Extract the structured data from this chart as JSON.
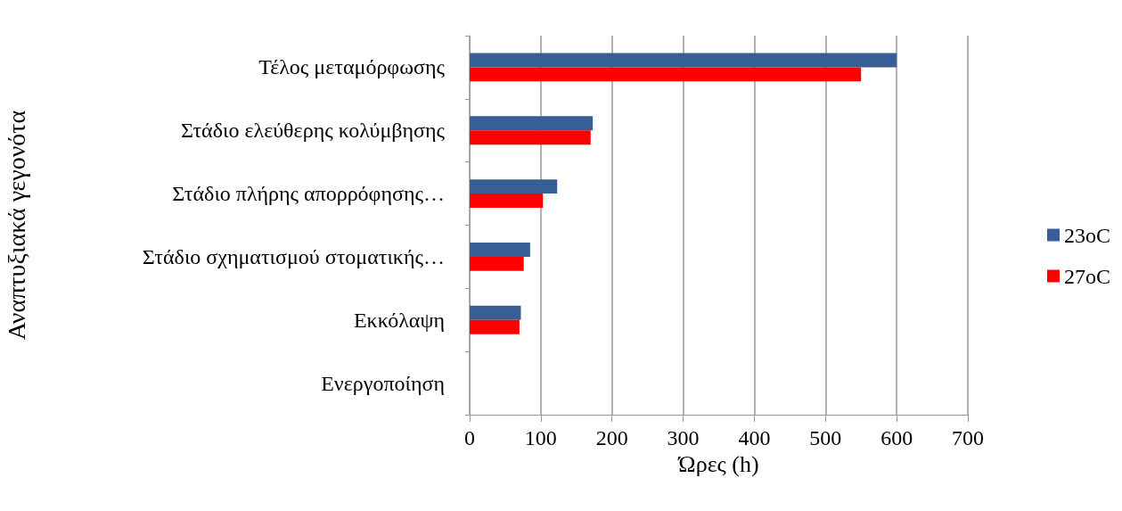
{
  "chart_data": {
    "type": "bar",
    "orientation": "horizontal",
    "xlabel": "Ώρες (h)",
    "ylabel": "Αναπτυξιακά γεγονότα",
    "categories": [
      "Τέλος μεταμόρφωσης",
      "Στάδιο ελεύθερης κολύμβησης",
      "Στάδιο πλήρης απορρόφησης…",
      "Στάδιο σχηματισμού στοματικής…",
      "Εκκόλαψη",
      "Ενεργοποίηση"
    ],
    "series": [
      {
        "name": "23oC",
        "color": "#375f93",
        "values": [
          600,
          173,
          123,
          85,
          72,
          0
        ]
      },
      {
        "name": "27oC",
        "color": "#ff0000",
        "values": [
          550,
          170,
          103,
          76,
          70,
          0
        ]
      }
    ],
    "xlim": [
      0,
      700
    ],
    "xticks": [
      0,
      100,
      200,
      300,
      400,
      500,
      600,
      700
    ],
    "grid": "x",
    "legend": "right"
  }
}
